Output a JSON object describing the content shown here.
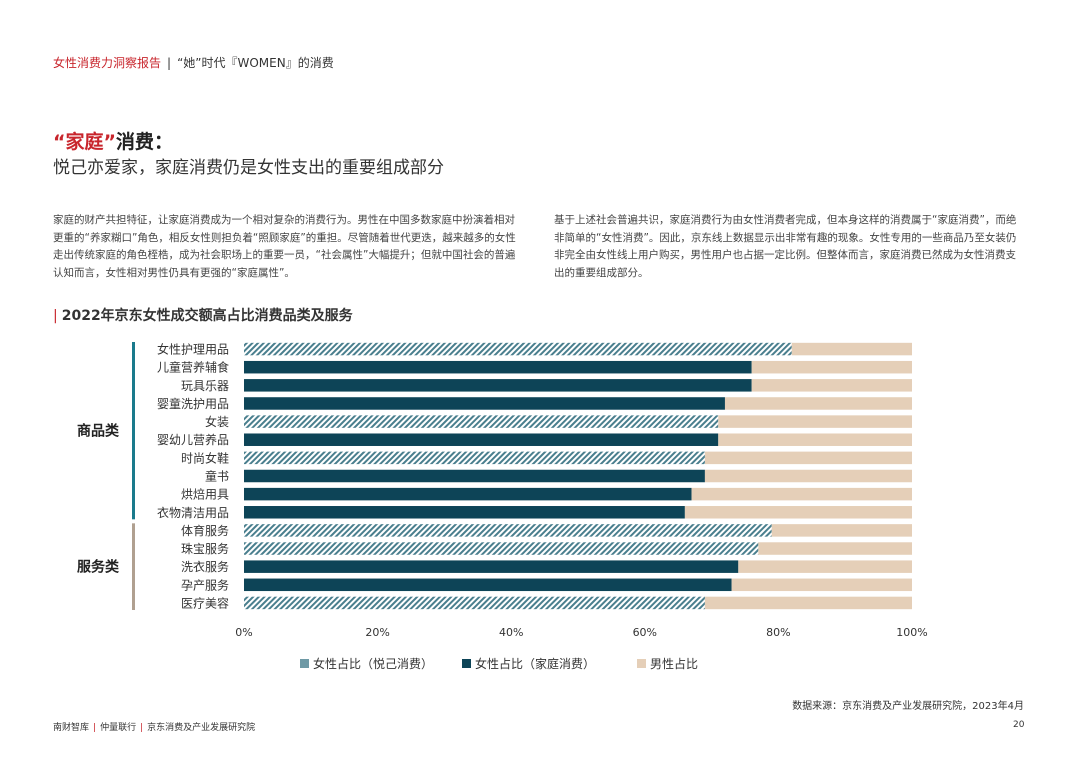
{
  "header": {
    "report": "女性消费力洞察报告",
    "separator": "|",
    "subtitle": "“她”时代『WOMEN』的消费"
  },
  "section": {
    "title_red": "“家庭”",
    "title_rest": "消费：",
    "subtitle": "悦己亦爱家，家庭消费仍是女性支出的重要组成部分"
  },
  "paragraphs": {
    "left": "家庭的财产共担特征，让家庭消费成为一个相对复杂的消费行为。男性在中国多数家庭中扮演着相对更重的“养家糊口”角色，相反女性则担负着“照顾家庭”的重担。尽管随着世代更迭，越来越多的女性走出传统家庭的角色桎梏，成为社会职场上的重要一员，“社会属性”大幅提升；但就中国社会的普遍认知而言，女性相对男性仍具有更强的“家庭属性”。",
    "right": "基于上述社会普遍共识，家庭消费行为由女性消费者完成，但本身这样的消费属于“家庭消费”，而绝非简单的“女性消费”。因此，京东线上数据显示出非常有趣的现象。女性专用的一些商品乃至女装仍非完全由女性线上用户购买，男性用户也占据一定比例。但整体而言，家庭消费已然成为女性消费支出的重要组成部分。"
  },
  "chart_title": "2022年京东女性成交额高占比消费品类及服务",
  "chart_data": {
    "type": "bar",
    "orientation": "horizontal",
    "stacked": true,
    "categories": [
      "女性护理用品",
      "儿童营养辅食",
      "玩具乐器",
      "婴童洗护用品",
      "女装",
      "婴幼儿营养品",
      "时尚女鞋",
      "童书",
      "烘焙用具",
      "衣物清洁用品",
      "体育服务",
      "珠宝服务",
      "洗衣服务",
      "孕产服务",
      "医疗美容"
    ],
    "female_share": [
      82,
      76,
      76,
      72,
      71,
      71,
      69,
      69,
      67,
      66,
      79,
      77,
      74,
      73,
      69
    ],
    "female_type": [
      "self",
      "family",
      "family",
      "family",
      "self",
      "family",
      "self",
      "family",
      "family",
      "family",
      "self",
      "self",
      "family",
      "family",
      "self"
    ],
    "series": [
      {
        "name": "女性占比（悦己消费）",
        "key": "self",
        "color": "#4a7f8e"
      },
      {
        "name": "女性占比（家庭消费）",
        "key": "family",
        "color": "#0d4457"
      },
      {
        "name": "男性占比",
        "key": "male",
        "color": "#e5cfb8"
      }
    ],
    "groups": [
      {
        "name": "商品类",
        "from": 0,
        "to": 9,
        "color": "#1a7a8c"
      },
      {
        "name": "服务类",
        "from": 10,
        "to": 14,
        "color": "#b0a090"
      }
    ],
    "xlim": [
      0,
      100
    ],
    "xticks": [
      "0%",
      "20%",
      "40%",
      "60%",
      "80%",
      "100%"
    ],
    "legend": "bottom"
  },
  "source": "数据来源：京东消费及产业发展研究院，2023年4月",
  "footer": {
    "org1": "南财智库",
    "org2": "仲量联行",
    "org3": "京东消费及产业发展研究院",
    "sep": "|",
    "page": "20"
  }
}
